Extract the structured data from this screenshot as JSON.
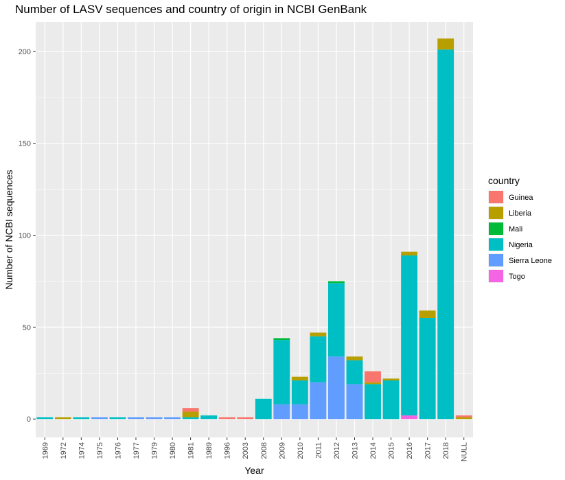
{
  "chart_data": {
    "type": "bar",
    "stacked": true,
    "title": "Number of LASV sequences and country of origin in NCBI GenBank",
    "xlabel": "Year",
    "ylabel": "Number of NCBI sequences",
    "ylim": [
      -10,
      216
    ],
    "yticks": [
      0,
      50,
      100,
      150,
      200
    ],
    "grid": true,
    "legend_title": "country",
    "legend_position": "right",
    "categories": [
      "1969",
      "1972",
      "1974",
      "1975",
      "1976",
      "1977",
      "1979",
      "1980",
      "1981",
      "1989",
      "1996",
      "2003",
      "2008",
      "2009",
      "2010",
      "2011",
      "2012",
      "2013",
      "2014",
      "2015",
      "2016",
      "2017",
      "2018",
      "NULL"
    ],
    "series": [
      {
        "name": "Togo",
        "color": "#F564E3",
        "values": [
          0,
          0,
          0,
          0,
          0,
          0,
          0,
          0,
          0,
          0,
          0,
          0,
          0,
          0,
          0,
          0,
          0,
          0,
          0,
          0,
          2,
          0,
          0,
          0
        ]
      },
      {
        "name": "Sierra Leone",
        "color": "#619CFF",
        "values": [
          0,
          0,
          0,
          1,
          0,
          1,
          1,
          1,
          0,
          0,
          0,
          0,
          0,
          8,
          8,
          20,
          34,
          19,
          0,
          0,
          0,
          0,
          0,
          0
        ]
      },
      {
        "name": "Nigeria",
        "color": "#00BFC4",
        "values": [
          1,
          0,
          1,
          0,
          1,
          0,
          0,
          0,
          1,
          2,
          0,
          0,
          11,
          35,
          13,
          25,
          40,
          13,
          19,
          21,
          87,
          55,
          201,
          0
        ]
      },
      {
        "name": "Mali",
        "color": "#00BA38",
        "values": [
          0,
          0,
          0,
          0,
          0,
          0,
          0,
          0,
          0,
          0,
          0,
          0,
          0,
          1,
          0,
          0,
          1,
          0,
          0,
          0,
          0,
          0,
          0,
          0
        ]
      },
      {
        "name": "Liberia",
        "color": "#B79F00",
        "values": [
          0,
          1,
          0,
          0,
          0,
          0,
          0,
          0,
          3,
          0,
          0,
          0,
          0,
          0,
          2,
          2,
          0,
          2,
          1,
          1,
          2,
          4,
          6,
          1
        ]
      },
      {
        "name": "Guinea",
        "color": "#F8766D",
        "values": [
          0,
          0,
          0,
          0,
          0,
          0,
          0,
          0,
          2,
          0,
          1,
          1,
          0,
          0,
          0,
          0,
          0,
          0,
          6,
          0,
          0,
          0,
          0,
          1
        ]
      }
    ],
    "legend_order": [
      "Guinea",
      "Liberia",
      "Mali",
      "Nigeria",
      "Sierra Leone",
      "Togo"
    ]
  }
}
